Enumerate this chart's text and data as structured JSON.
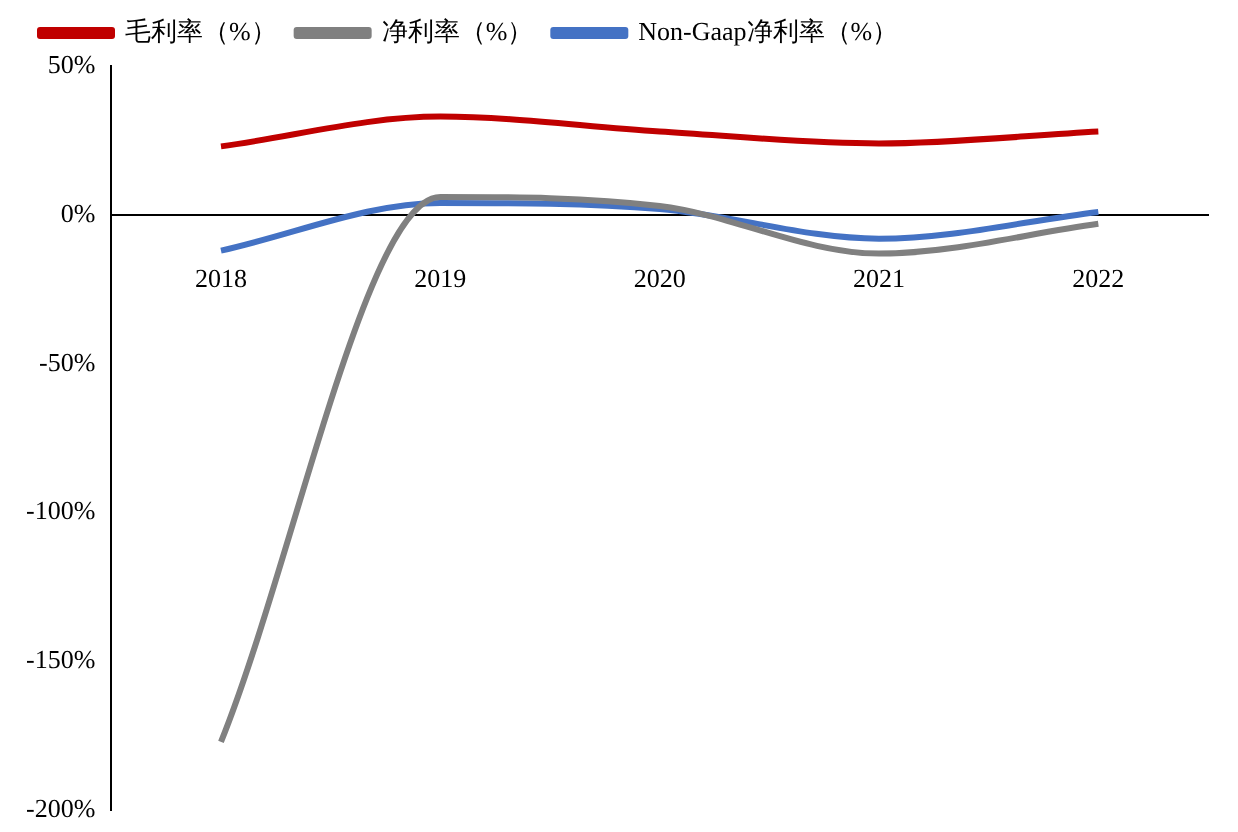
{
  "chart_data": {
    "type": "line",
    "categories": [
      "2018",
      "2019",
      "2020",
      "2021",
      "2022"
    ],
    "series": [
      {
        "name": "毛利率（%）",
        "color": "#c00000",
        "values": [
          23,
          33,
          28,
          24,
          28
        ]
      },
      {
        "name": "净利率（%）",
        "color": "#808080",
        "values": [
          -177,
          6,
          3,
          -13,
          -3
        ]
      },
      {
        "name": "Non-Gaap净利率（%）",
        "color": "#4472c4",
        "values": [
          -12,
          4,
          2,
          -8,
          1
        ]
      }
    ],
    "ylim": [
      -200,
      50
    ],
    "yticks": [
      {
        "value": -200,
        "label": "-200%"
      },
      {
        "value": -150,
        "label": "-150%"
      },
      {
        "value": -100,
        "label": "-100%"
      },
      {
        "value": -50,
        "label": "-50%"
      },
      {
        "value": 0,
        "label": "0%"
      },
      {
        "value": 50,
        "label": "50%"
      }
    ],
    "grid": false,
    "legend": "top",
    "marker": "none",
    "line_style": "solid"
  }
}
